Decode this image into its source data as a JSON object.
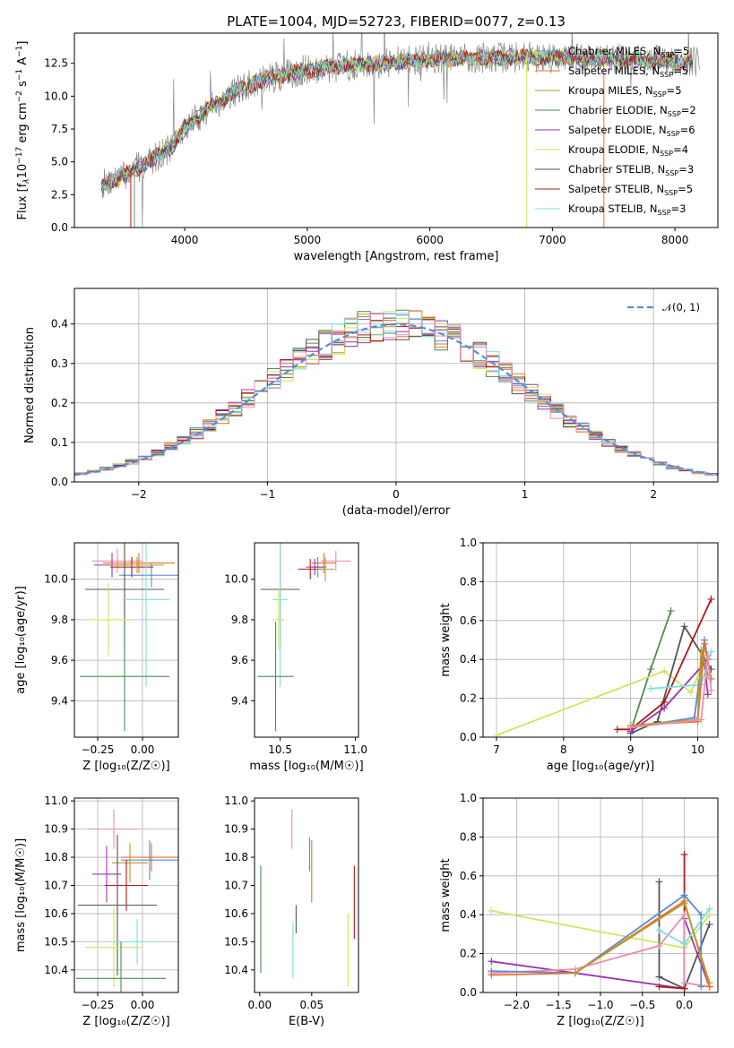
{
  "colors": {
    "Chabrier MILES": "#5b8ad6",
    "Salpeter MILES": "#e96f2b",
    "Kroupa MILES": "#b89a2e",
    "Chabrier ELODIE": "#4f8a55",
    "Salpeter ELODIE": "#9b34b0",
    "Kroupa ELODIE": "#cde65a",
    "Chabrier STELIB": "#545454",
    "Salpeter STELIB": "#b01818",
    "Kroupa STELIB": "#7fdedf",
    "pink": "#e98fb2",
    "data": "#888888",
    "normal": "#5b8ad6"
  },
  "chart_data": [
    {
      "id": "spectrum",
      "type": "line",
      "title": "PLATE=1004, MJD=52723, FIBERID=0077, z=0.13",
      "xlabel": "wavelength [Angstrom, rest frame]",
      "ylabel_html": "Flux [f",
      "ylabel_parts": [
        "Flux [f",
        "λ",
        "10",
        "−17",
        " erg cm",
        "−2",
        " s",
        "−1",
        " A",
        "−1",
        "]"
      ],
      "xlim": [
        3100,
        8350
      ],
      "ylim": [
        0,
        14.8
      ],
      "xticks": [
        4000,
        5000,
        6000,
        7000,
        8000
      ],
      "yticks": [
        0.0,
        2.5,
        5.0,
        7.5,
        10.0,
        12.5
      ],
      "yticklabels": [
        "0.0",
        "2.5",
        "5.0",
        "7.5",
        "10.0",
        "12.5"
      ],
      "continuum": {
        "x": [
          3300,
          3500,
          3700,
          3900,
          4000,
          4200,
          4400,
          4600,
          4800,
          5000,
          5300,
          5600,
          6000,
          6400,
          6800,
          7200,
          7600,
          8000,
          8200
        ],
        "y": [
          3.2,
          3.9,
          5.0,
          6.2,
          7.6,
          9.1,
          10.3,
          11.1,
          11.6,
          12.0,
          12.3,
          12.5,
          12.8,
          12.9,
          13.0,
          12.9,
          12.8,
          12.7,
          12.6
        ]
      },
      "legend": [
        {
          "name": "Chabrier MILES",
          "sub": "SSP",
          "n": "5"
        },
        {
          "name": "Salpeter MILES",
          "sub": "SSP",
          "n": "5"
        },
        {
          "name": "Kroupa MILES",
          "sub": "SSP",
          "n": "5"
        },
        {
          "name": "Chabrier ELODIE",
          "sub": "SSP",
          "n": "2"
        },
        {
          "name": "Salpeter ELODIE",
          "sub": "SSP",
          "n": "6"
        },
        {
          "name": "Kroupa ELODIE",
          "sub": "SSP",
          "n": "4"
        },
        {
          "name": "Chabrier STELIB",
          "sub": "SSP",
          "n": "3"
        },
        {
          "name": "Salpeter STELIB",
          "sub": "SSP",
          "n": "5"
        },
        {
          "name": "Kroupa STELIB",
          "sub": "SSP",
          "n": "3"
        }
      ]
    },
    {
      "id": "residuals",
      "type": "line",
      "xlabel": "(data-model)/error",
      "ylabel": "Normed distribution",
      "xlim": [
        -2.5,
        2.5
      ],
      "ylim": [
        0,
        0.49
      ],
      "xticks": [
        -2,
        -1,
        0,
        1,
        2
      ],
      "xticklabels": [
        "−2",
        "−1",
        "0",
        "1",
        "2"
      ],
      "yticks": [
        0.0,
        0.1,
        0.2,
        0.3,
        0.4
      ],
      "yticklabels": [
        "0.0",
        "0.1",
        "0.2",
        "0.3",
        "0.4"
      ],
      "legend": "𝒩(0, 1)",
      "grid": true,
      "bin_width": 0.1
    },
    {
      "id": "age_vs_Z",
      "type": "scatter",
      "xlabel": "Z [log₁₀(Z/Z☉)]",
      "ylabel": "age  [log₁₀(age/yr)]",
      "xlim": [
        -0.38,
        0.2
      ],
      "ylim": [
        9.22,
        10.18
      ],
      "xticks": [
        -0.25,
        0.0
      ],
      "xticklabels": [
        "−0.25",
        "0.00"
      ],
      "yticks": [
        9.4,
        9.6,
        9.8,
        10.0
      ],
      "yticklabels": [
        "9.4",
        "9.6",
        "9.8",
        "10.0"
      ],
      "points": [
        {
          "series": "pink",
          "x": -0.14,
          "xerr": 0.14,
          "y": 10.09,
          "yerr": 0.06
        },
        {
          "series": "Salpeter MILES",
          "x": -0.02,
          "xerr": 0.2,
          "y": 10.08,
          "yerr": 0.05
        },
        {
          "series": "Chabrier MILES",
          "x": 0.05,
          "xerr": 0.18,
          "y": 10.02,
          "yerr": 0.06
        },
        {
          "series": "Salpeter STELIB",
          "x": -0.06,
          "xerr": 0.12,
          "y": 10.06,
          "yerr": 0.05
        },
        {
          "series": "Salpeter ELODIE",
          "x": -0.17,
          "xerr": 0.1,
          "y": 10.07,
          "yerr": 0.06
        },
        {
          "series": "Kroupa MILES",
          "x": -0.03,
          "xerr": 0.15,
          "y": 10.07,
          "yerr": 0.04
        },
        {
          "series": "Chabrier STELIB",
          "x": -0.1,
          "xerr": 0.22,
          "y": 9.95,
          "yerr": 0.3
        },
        {
          "series": "Kroupa STELIB",
          "x": 0.02,
          "xerr": 0.13,
          "y": 9.9,
          "yerr": 0.43
        },
        {
          "series": "Kroupa ELODIE",
          "x": -0.19,
          "xerr": 0.13,
          "y": 9.8,
          "yerr": 0.18
        },
        {
          "series": "Chabrier ELODIE",
          "x": -0.1,
          "xerr": 0.25,
          "y": 9.52,
          "yerr": 0.27
        }
      ]
    },
    {
      "id": "age_vs_mass",
      "type": "scatter",
      "xlabel": "mass [log₁₀(M/M☉)]",
      "xlim": [
        10.33,
        11.02
      ],
      "ylim": [
        9.22,
        10.18
      ],
      "xticks": [
        10.5,
        11.0
      ],
      "xticklabels": [
        "10.5",
        "11.0"
      ],
      "yticks": [
        9.4,
        9.6,
        9.8,
        10.0
      ],
      "yticklabels": [
        "9.4",
        "9.6",
        "9.8",
        "10.0"
      ],
      "points": [
        {
          "series": "pink",
          "x": 10.87,
          "xerr": 0.1,
          "y": 10.09,
          "yerr": 0.05
        },
        {
          "series": "Salpeter MILES",
          "x": 10.79,
          "xerr": 0.08,
          "y": 10.08,
          "yerr": 0.05
        },
        {
          "series": "Chabrier MILES",
          "x": 10.75,
          "xerr": 0.06,
          "y": 10.06,
          "yerr": 0.05
        },
        {
          "series": "Salpeter STELIB",
          "x": 10.7,
          "xerr": 0.08,
          "y": 10.05,
          "yerr": 0.05
        },
        {
          "series": "Salpeter ELODIE",
          "x": 10.73,
          "xerr": 0.06,
          "y": 10.06,
          "yerr": 0.04
        },
        {
          "series": "Kroupa MILES",
          "x": 10.8,
          "xerr": 0.06,
          "y": 10.05,
          "yerr": 0.06
        },
        {
          "series": "Chabrier STELIB",
          "x": 10.5,
          "xerr": 0.13,
          "y": 9.95,
          "yerr": 0.28
        },
        {
          "series": "Kroupa STELIB",
          "x": 10.5,
          "xerr": 0.05,
          "y": 9.9,
          "yerr": 0.43
        },
        {
          "series": "Kroupa ELODIE",
          "x": 10.49,
          "xerr": 0.04,
          "y": 9.8,
          "yerr": 0.15
        },
        {
          "series": "Chabrier ELODIE",
          "x": 10.47,
          "xerr": 0.12,
          "y": 9.52,
          "yerr": 0.27
        }
      ]
    },
    {
      "id": "massweight_vs_age",
      "type": "line",
      "xlabel": "age  [log₁₀(age/yr)]",
      "ylabel": "mass weight",
      "xlim": [
        6.8,
        10.3
      ],
      "ylim": [
        0,
        1.0
      ],
      "xticks": [
        7,
        8,
        9,
        10
      ],
      "xticklabels": [
        "7",
        "8",
        "9",
        "10"
      ],
      "yticks": [
        0.0,
        0.2,
        0.4,
        0.6,
        0.8,
        1.0
      ],
      "yticklabels": [
        "0.0",
        "0.2",
        "0.4",
        "0.6",
        "0.8",
        "1.0"
      ],
      "series": [
        {
          "name": "Chabrier ELODIE",
          "x": [
            9.0,
            9.3,
            9.6
          ],
          "y": [
            0.03,
            0.35,
            0.65
          ]
        },
        {
          "name": "Kroupa ELODIE",
          "x": [
            7.0,
            9.5,
            9.9,
            10.1
          ],
          "y": [
            0.01,
            0.34,
            0.23,
            0.4
          ]
        },
        {
          "name": "Chabrier STELIB",
          "x": [
            9.0,
            9.4,
            9.8,
            10.2
          ],
          "y": [
            0.02,
            0.08,
            0.57,
            0.35
          ]
        },
        {
          "name": "Salpeter STELIB",
          "x": [
            8.8,
            9.0,
            9.5,
            10.2
          ],
          "y": [
            0.04,
            0.04,
            0.18,
            0.71
          ]
        },
        {
          "name": "Salpeter ELODIE",
          "x": [
            9.0,
            9.5,
            10.1,
            10.15
          ],
          "y": [
            0.03,
            0.15,
            0.38,
            0.22
          ]
        },
        {
          "name": "Kroupa STELIB",
          "x": [
            9.3,
            10.05,
            10.2
          ],
          "y": [
            0.25,
            0.27,
            0.44
          ]
        },
        {
          "name": "Chabrier MILES",
          "x": [
            9.0,
            9.95,
            10.1,
            10.15
          ],
          "y": [
            0.05,
            0.1,
            0.5,
            0.4
          ]
        },
        {
          "name": "Salpeter MILES",
          "x": [
            9.0,
            10.0,
            10.1,
            10.2
          ],
          "y": [
            0.06,
            0.08,
            0.48,
            0.3
          ]
        },
        {
          "name": "Kroupa MILES",
          "x": [
            9.0,
            10.0,
            10.05,
            10.15
          ],
          "y": [
            0.06,
            0.09,
            0.45,
            0.32
          ]
        },
        {
          "name": "pink",
          "x": [
            9.0,
            10.05,
            10.15,
            10.2
          ],
          "y": [
            0.05,
            0.09,
            0.42,
            0.24
          ]
        }
      ]
    },
    {
      "id": "mass_vs_Z",
      "type": "scatter",
      "xlabel": "Z [log₁₀(Z/Z☉)]",
      "ylabel": "mass [log₁₀(M/M☉)]",
      "xlim": [
        -0.38,
        0.2
      ],
      "ylim": [
        10.32,
        11.01
      ],
      "xticks": [
        -0.25,
        0.0
      ],
      "xticklabels": [
        "−0.25",
        "0.00"
      ],
      "yticks": [
        10.4,
        10.5,
        10.6,
        10.7,
        10.8,
        10.9,
        11.0
      ],
      "yticklabels": [
        "10.4",
        "10.5",
        "10.6",
        "10.7",
        "10.8",
        "10.9",
        "11.0"
      ],
      "points": [
        {
          "series": "pink",
          "x": -0.16,
          "xerr": 0.14,
          "y": 10.9,
          "yerr": 0.07
        },
        {
          "series": "Salpeter MILES",
          "x": 0.05,
          "xerr": 0.17,
          "y": 10.8,
          "yerr": 0.05
        },
        {
          "series": "Chabrier MILES",
          "x": 0.04,
          "xerr": 0.16,
          "y": 10.79,
          "yerr": 0.07
        },
        {
          "series": "Kroupa MILES",
          "x": -0.07,
          "xerr": 0.1,
          "y": 10.78,
          "yerr": 0.07
        },
        {
          "series": "Salpeter ELODIE",
          "x": -0.2,
          "xerr": 0.08,
          "y": 10.74,
          "yerr": 0.1
        },
        {
          "series": "Salpeter STELIB",
          "x": -0.09,
          "xerr": 0.12,
          "y": 10.7,
          "yerr": 0.09
        },
        {
          "series": "Chabrier STELIB",
          "x": -0.14,
          "xerr": 0.22,
          "y": 10.63,
          "yerr": 0.25
        },
        {
          "series": "Kroupa STELIB",
          "x": -0.03,
          "xerr": 0.13,
          "y": 10.5,
          "yerr": 0.08
        },
        {
          "series": "Kroupa ELODIE",
          "x": -0.16,
          "xerr": 0.16,
          "y": 10.48,
          "yerr": 0.14
        },
        {
          "series": "Chabrier ELODIE",
          "x": -0.12,
          "xerr": 0.25,
          "y": 10.37,
          "yerr": 0.13
        }
      ]
    },
    {
      "id": "mass_vs_EBV",
      "type": "scatter",
      "xlabel": "E(B-V)",
      "xlim": [
        -0.005,
        0.095
      ],
      "ylim": [
        10.32,
        11.01
      ],
      "xticks": [
        0.0,
        0.05
      ],
      "xticklabels": [
        "0.00",
        "0.05"
      ],
      "yticks": [
        10.4,
        10.5,
        10.6,
        10.7,
        10.8,
        10.9,
        11.0
      ],
      "yticklabels": [
        "10.4",
        "10.5",
        "10.6",
        "10.7",
        "10.8",
        "10.9",
        "11.0"
      ],
      "points": [
        {
          "series": "pink",
          "x": 0.031,
          "y": 10.9,
          "yerr": 0.07
        },
        {
          "series": "Chabrier MILES",
          "x": 0.048,
          "y": 10.81,
          "yerr": 0.06
        },
        {
          "series": "Salpeter MILES",
          "x": 0.05,
          "y": 10.75,
          "yerr": 0.11
        },
        {
          "series": "Salpeter STELIB",
          "x": 0.091,
          "y": 10.64,
          "yerr": 0.13
        },
        {
          "series": "Chabrier STELIB",
          "x": 0.035,
          "y": 10.58,
          "yerr": 0.05
        },
        {
          "series": "Kroupa STELIB",
          "x": 0.032,
          "y": 10.47,
          "yerr": 0.1
        },
        {
          "series": "Kroupa ELODIE",
          "x": 0.085,
          "y": 10.47,
          "yerr": 0.13
        },
        {
          "series": "Chabrier ELODIE",
          "x": 0.001,
          "y": 10.58,
          "yerr": 0.19
        }
      ]
    },
    {
      "id": "massweight_vs_Z",
      "type": "line",
      "xlabel": "Z [log₁₀(Z/Z☉)]",
      "ylabel": "mass weight",
      "xlim": [
        -2.4,
        0.4
      ],
      "ylim": [
        0,
        1.0
      ],
      "xticks": [
        -2.0,
        -1.5,
        -1.0,
        -0.5,
        0.0
      ],
      "xticklabels": [
        "−2.0",
        "−1.5",
        "−1.0",
        "−0.5",
        "0.0"
      ],
      "yticks": [
        0.0,
        0.2,
        0.4,
        0.6,
        0.8,
        1.0
      ],
      "yticklabels": [
        "0.0",
        "0.2",
        "0.4",
        "0.6",
        "0.8",
        "1.0"
      ],
      "series": [
        {
          "name": "Kroupa ELODIE",
          "x": [
            -2.3,
            0.0,
            0.3
          ],
          "y": [
            0.42,
            0.23,
            0.4
          ]
        },
        {
          "name": "Salpeter ELODIE",
          "x": [
            -2.3,
            -1.3,
            0.0,
            0.0,
            0.3
          ],
          "y": [
            0.16,
            0.1,
            0.02,
            0.38,
            0.03
          ]
        },
        {
          "name": "Chabrier STELIB",
          "x": [
            -0.3,
            -0.3,
            0.0,
            0.3
          ],
          "y": [
            0.57,
            0.08,
            0.02,
            0.35
          ]
        },
        {
          "name": "Salpeter STELIB",
          "x": [
            -0.3,
            0.0,
            0.0
          ],
          "y": [
            0.03,
            0.02,
            0.71
          ]
        },
        {
          "name": "pink",
          "x": [
            -2.3,
            -1.3,
            -0.3,
            0.0,
            0.0,
            0.3
          ],
          "y": [
            0.1,
            0.12,
            0.24,
            0.4,
            0.05,
            0.03
          ]
        },
        {
          "name": "Chabrier MILES",
          "x": [
            -2.3,
            -1.3,
            0.0,
            0.2,
            0.2
          ],
          "y": [
            0.11,
            0.1,
            0.5,
            0.4,
            0.03
          ]
        },
        {
          "name": "Kroupa STELIB",
          "x": [
            -0.3,
            0.0,
            0.3
          ],
          "y": [
            0.32,
            0.25,
            0.43
          ]
        },
        {
          "name": "Salpeter MILES",
          "x": [
            -2.3,
            -1.3,
            0.0,
            0.3
          ],
          "y": [
            0.09,
            0.1,
            0.47,
            0.03
          ]
        },
        {
          "name": "Kroupa MILES",
          "x": [
            -1.3,
            0.0,
            0.3
          ],
          "y": [
            0.1,
            0.46,
            0.05
          ]
        }
      ]
    }
  ]
}
